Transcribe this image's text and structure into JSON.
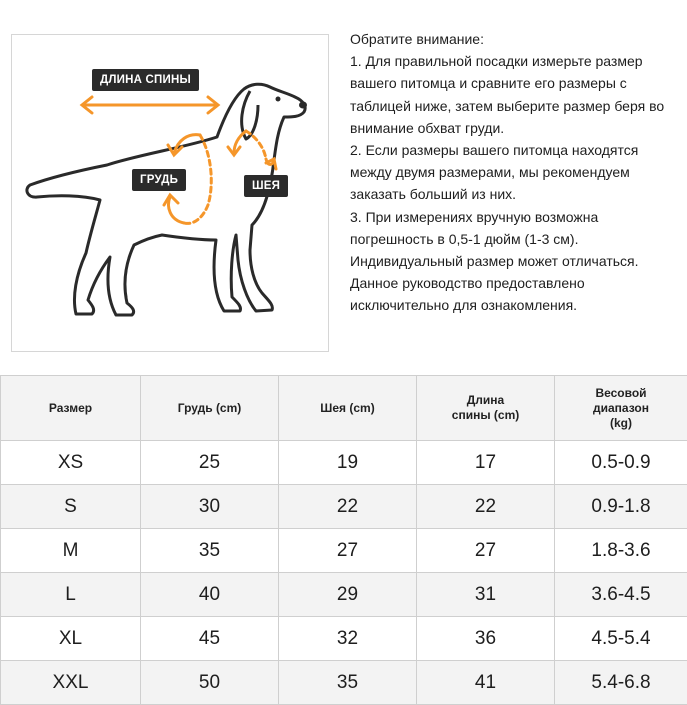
{
  "diagram": {
    "back_length_label": "ДЛИНА СПИНЫ",
    "chest_label": "ГРУДЬ",
    "neck_label": "ШЕЯ",
    "accent_color": "#f5962a"
  },
  "notes": [
    "Обратите внимание:",
    "1. Для правильной посадки измерьте размер вашего питомца и сравните его размеры с таблицей ниже, затем выберите размер беря во внимание обхват груди.",
    "2. Если размеры вашего питомца находятся между двумя размерами, мы рекомендуем заказать больший из них.",
    "3. При измерениях вручную возможна погрешность в 0,5-1 дюйм (1-3 см). Индивидуальный размер может отличаться.",
    "Данное руководство предоставлено исключительно для ознакомления."
  ],
  "table": {
    "headers": [
      "Размер",
      "Грудь (cm)",
      "Шея (cm)",
      "Длина спины (cm)",
      "Весовой диапазон (kg)"
    ],
    "rows": [
      [
        "XS",
        "25",
        "19",
        "17",
        "0.5-0.9"
      ],
      [
        "S",
        "30",
        "22",
        "22",
        "0.9-1.8"
      ],
      [
        "M",
        "35",
        "27",
        "27",
        "1.8-3.6"
      ],
      [
        "L",
        "40",
        "29",
        "31",
        "3.6-4.5"
      ],
      [
        "XL",
        "45",
        "32",
        "36",
        "4.5-5.4"
      ],
      [
        "XXL",
        "50",
        "35",
        "41",
        "5.4-6.8"
      ]
    ]
  }
}
